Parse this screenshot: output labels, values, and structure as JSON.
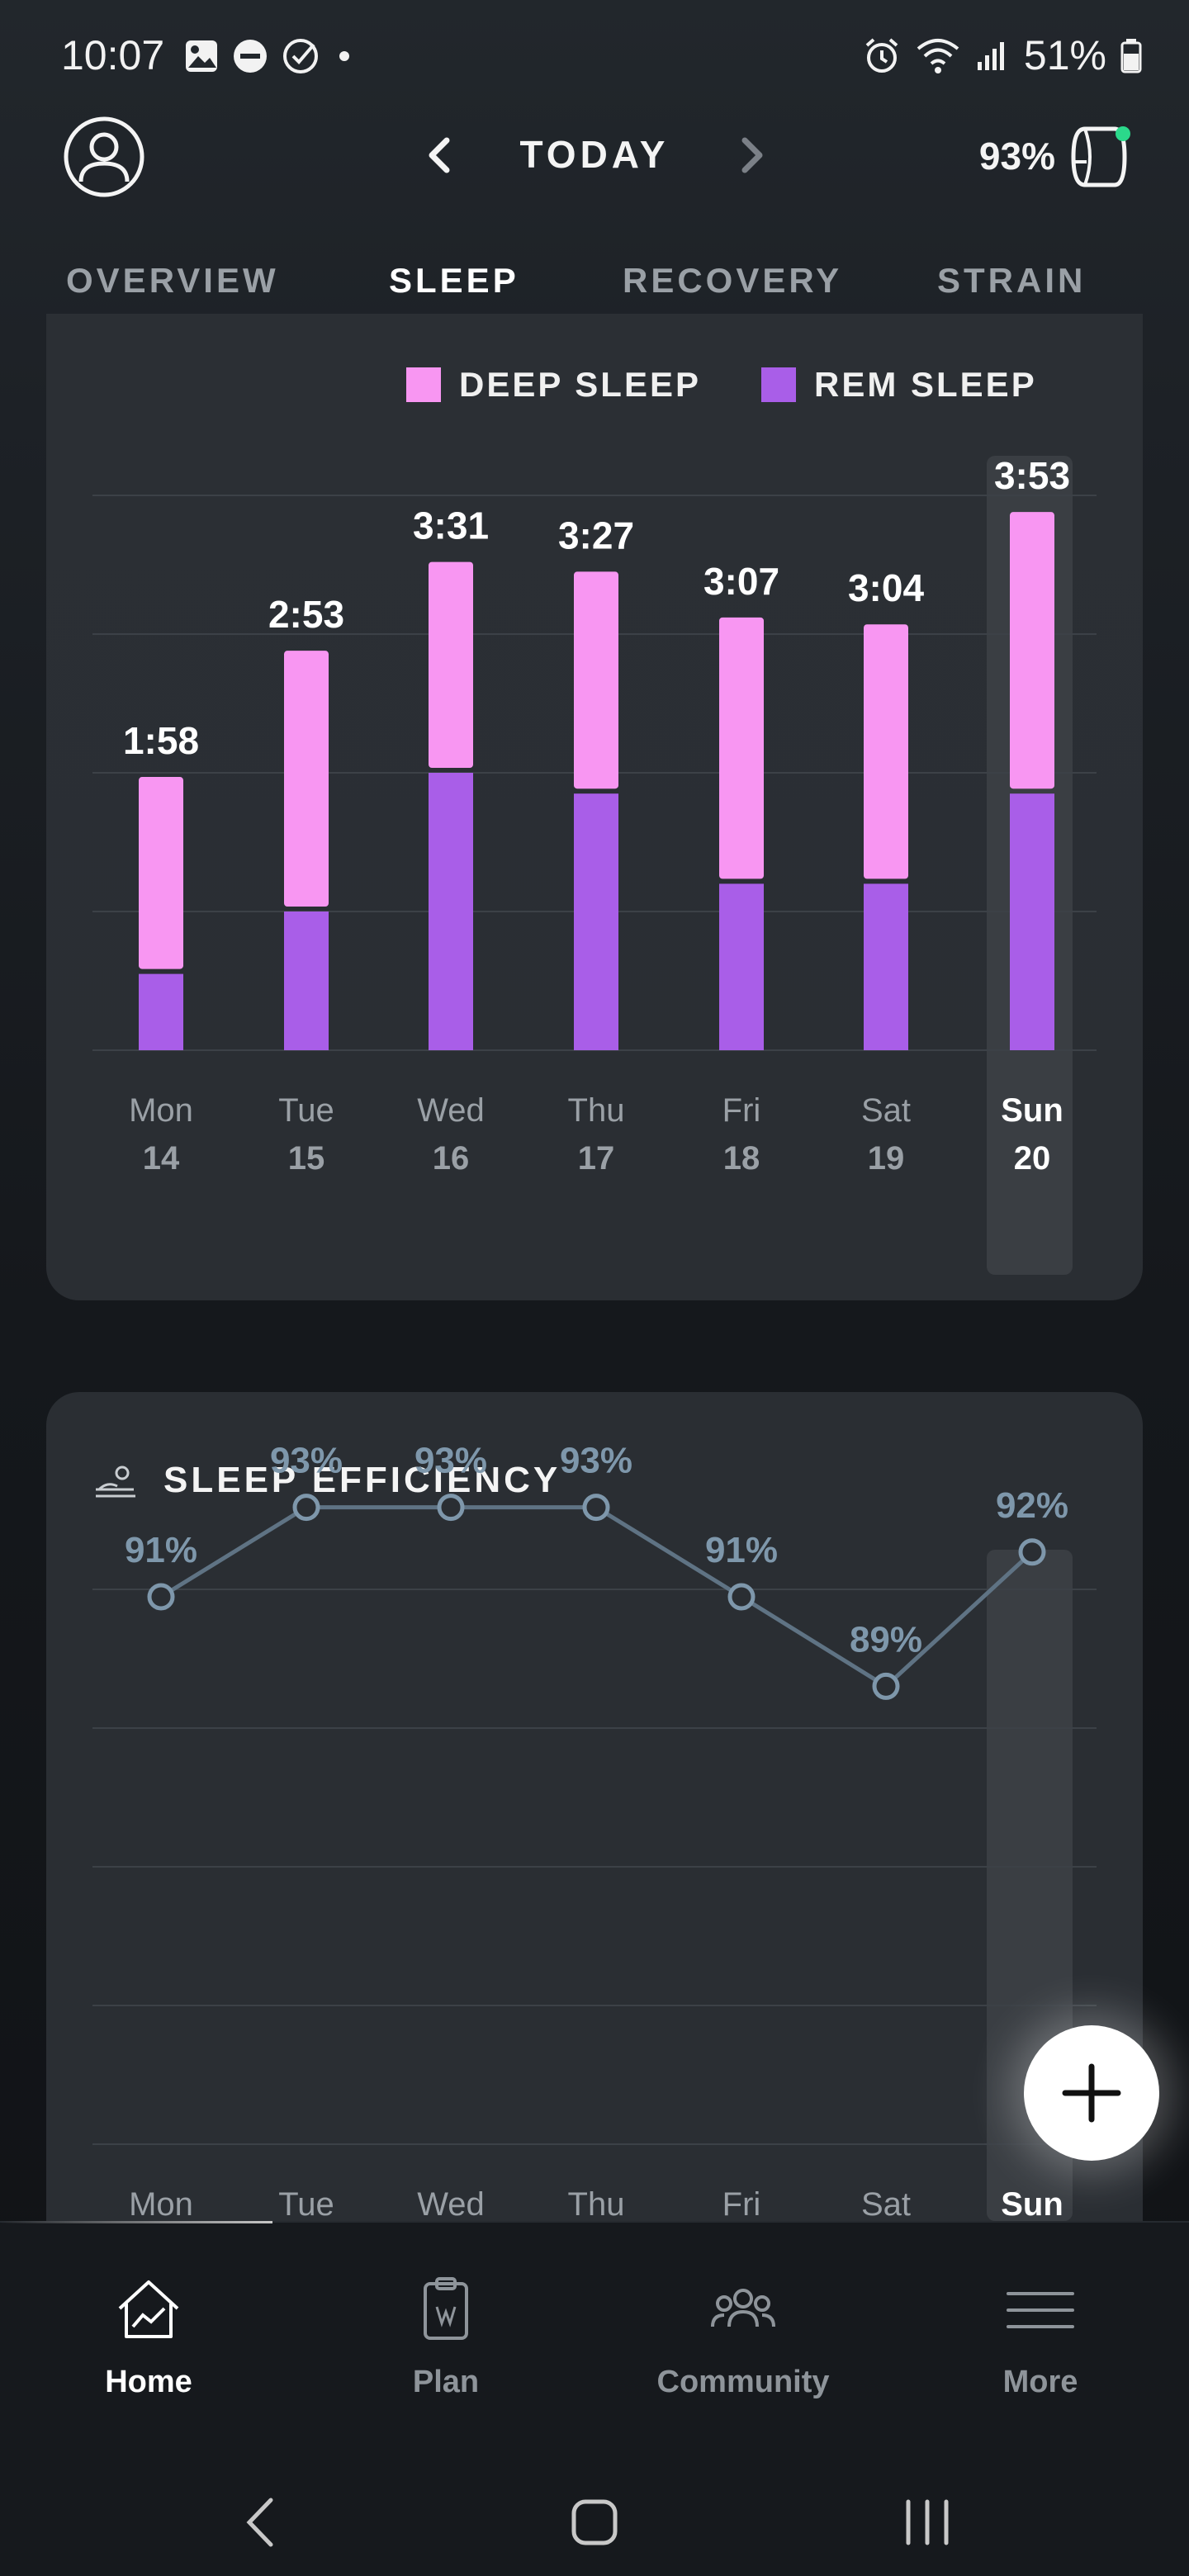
{
  "status_bar": {
    "time": "10:07",
    "battery": "51%"
  },
  "header": {
    "title": "TODAY",
    "recovery_battery": "93%"
  },
  "tabs": [
    {
      "label": "OVERVIEW",
      "active": false
    },
    {
      "label": "SLEEP",
      "active": true
    },
    {
      "label": "RECOVERY",
      "active": false
    },
    {
      "label": "STRAIN",
      "active": false
    }
  ],
  "colors": {
    "deep_sleep": "#f896f2",
    "rem_sleep": "#a95ee8",
    "efficiency_line": "#7e97ab",
    "selected_column": "#3a3e43"
  },
  "sleep_stages_chart": {
    "chart_data": {
      "type": "bar",
      "stacked": true,
      "legend": [
        "DEEP SLEEP",
        "REM SLEEP"
      ],
      "categories": [
        {
          "day": "Mon",
          "date": "14"
        },
        {
          "day": "Tue",
          "date": "15"
        },
        {
          "day": "Wed",
          "date": "16"
        },
        {
          "day": "Thu",
          "date": "17"
        },
        {
          "day": "Fri",
          "date": "18"
        },
        {
          "day": "Sat",
          "date": "19"
        },
        {
          "day": "Sun",
          "date": "20"
        }
      ],
      "total_labels": [
        "1:58",
        "2:53",
        "3:31",
        "3:27",
        "3:07",
        "3:04",
        "3:53"
      ],
      "series": [
        {
          "name": "REM SLEEP",
          "values_hours": [
            0.55,
            1.0,
            2.0,
            1.85,
            1.2,
            1.2,
            1.85
          ]
        },
        {
          "name": "DEEP SLEEP",
          "values_hours": [
            1.42,
            1.88,
            1.52,
            1.6,
            1.92,
            1.87,
            2.03
          ]
        }
      ],
      "ylim": [
        0,
        5
      ],
      "grid": true,
      "selected_index": 6
    }
  },
  "sleep_efficiency_chart": {
    "title": "SLEEP EFFICIENCY",
    "chart_data": {
      "type": "line",
      "categories": [
        "Mon",
        "Tue",
        "Wed",
        "Thu",
        "Fri",
        "Sat",
        "Sun"
      ],
      "values": [
        91,
        93,
        93,
        93,
        91,
        89,
        92
      ],
      "value_labels": [
        "91%",
        "93%",
        "93%",
        "93%",
        "91%",
        "89%",
        "92%"
      ],
      "ylim": [
        86,
        96
      ],
      "grid": true,
      "selected_index": 6
    }
  },
  "fab": {
    "icon": "plus-icon"
  },
  "bottom_nav": [
    {
      "label": "Home",
      "icon": "home-chart-icon",
      "active": true
    },
    {
      "label": "Plan",
      "icon": "clipboard-icon",
      "active": false
    },
    {
      "label": "Community",
      "icon": "people-icon",
      "active": false
    },
    {
      "label": "More",
      "icon": "menu-icon",
      "active": false
    }
  ]
}
